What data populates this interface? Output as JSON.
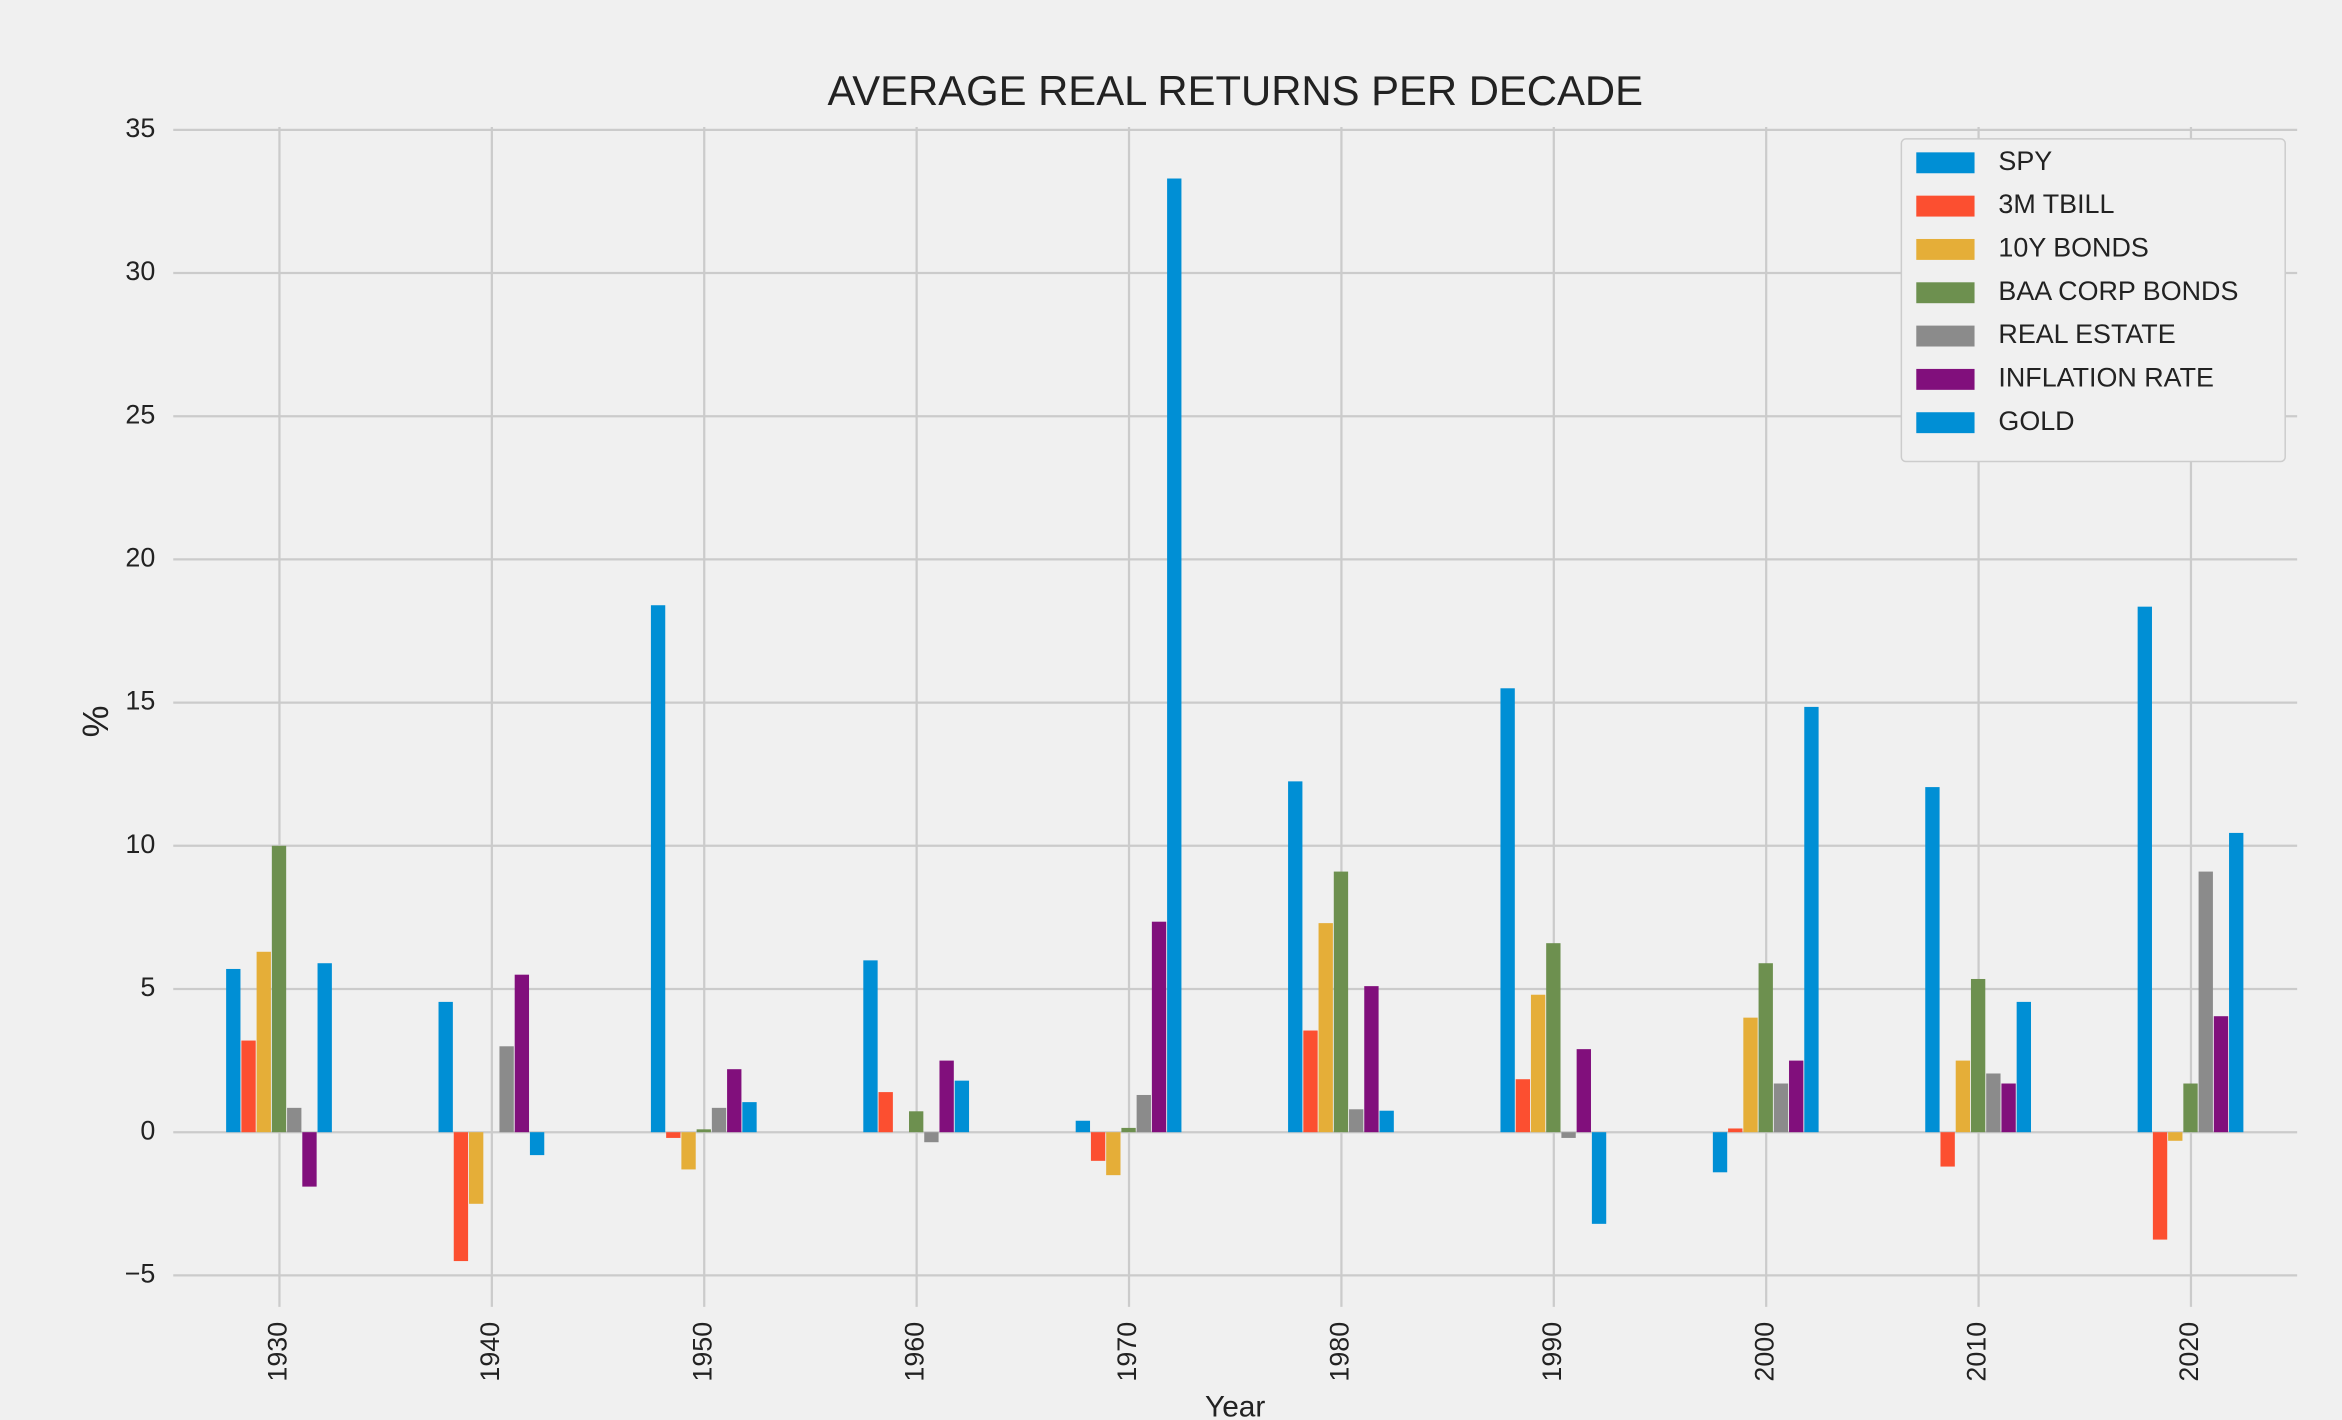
{
  "chart_data": {
    "type": "bar",
    "title": "AVERAGE REAL RETURNS PER DECADE",
    "x_label": "Year",
    "y_label": "%",
    "categories": [
      "1930",
      "1940",
      "1950",
      "1960",
      "1970",
      "1980",
      "1990",
      "2000",
      "2010",
      "2020"
    ],
    "series": [
      {
        "name": "SPY",
        "color": "#008fd5",
        "values": [
          5.7,
          4.55,
          18.4,
          6.0,
          0.4,
          12.25,
          15.5,
          -1.4,
          12.05,
          18.35
        ]
      },
      {
        "name": "3M TBILL",
        "color": "#fc4f30",
        "values": [
          3.2,
          -4.5,
          -0.2,
          1.4,
          -1.0,
          3.55,
          1.85,
          0.13,
          -1.2,
          -3.75
        ]
      },
      {
        "name": "10Y BONDS",
        "color": "#e5ae38",
        "values": [
          6.3,
          -2.5,
          -1.3,
          0,
          -1.5,
          7.3,
          4.8,
          4.0,
          2.5,
          -0.3
        ]
      },
      {
        "name": "BAA CORP BONDS",
        "color": "#6d904f",
        "values": [
          10.0,
          0,
          0.1,
          0.73,
          0.15,
          9.1,
          6.6,
          5.9,
          5.35,
          1.7
        ]
      },
      {
        "name": "REAL ESTATE",
        "color": "#8b8b8b",
        "values": [
          0.85,
          3.0,
          0.85,
          -0.35,
          1.3,
          0.8,
          -0.2,
          1.7,
          2.05,
          9.1
        ]
      },
      {
        "name": "INFLATION RATE",
        "color": "#810f7c",
        "values": [
          -1.9,
          5.5,
          2.2,
          2.5,
          7.35,
          5.1,
          2.9,
          2.5,
          1.7,
          4.05
        ]
      },
      {
        "name": "GOLD",
        "color": "#008fd5",
        "values": [
          5.9,
          -0.8,
          1.05,
          1.8,
          33.3,
          0.75,
          -3.2,
          14.85,
          4.55,
          10.45
        ]
      }
    ],
    "ylim": [
      -6.1,
      35.1
    ],
    "yticks": [
      {
        "value": -5,
        "label": "−5"
      },
      0,
      5,
      10,
      15,
      20,
      25,
      30,
      35
    ],
    "grid": true,
    "legend": "upper-right"
  }
}
